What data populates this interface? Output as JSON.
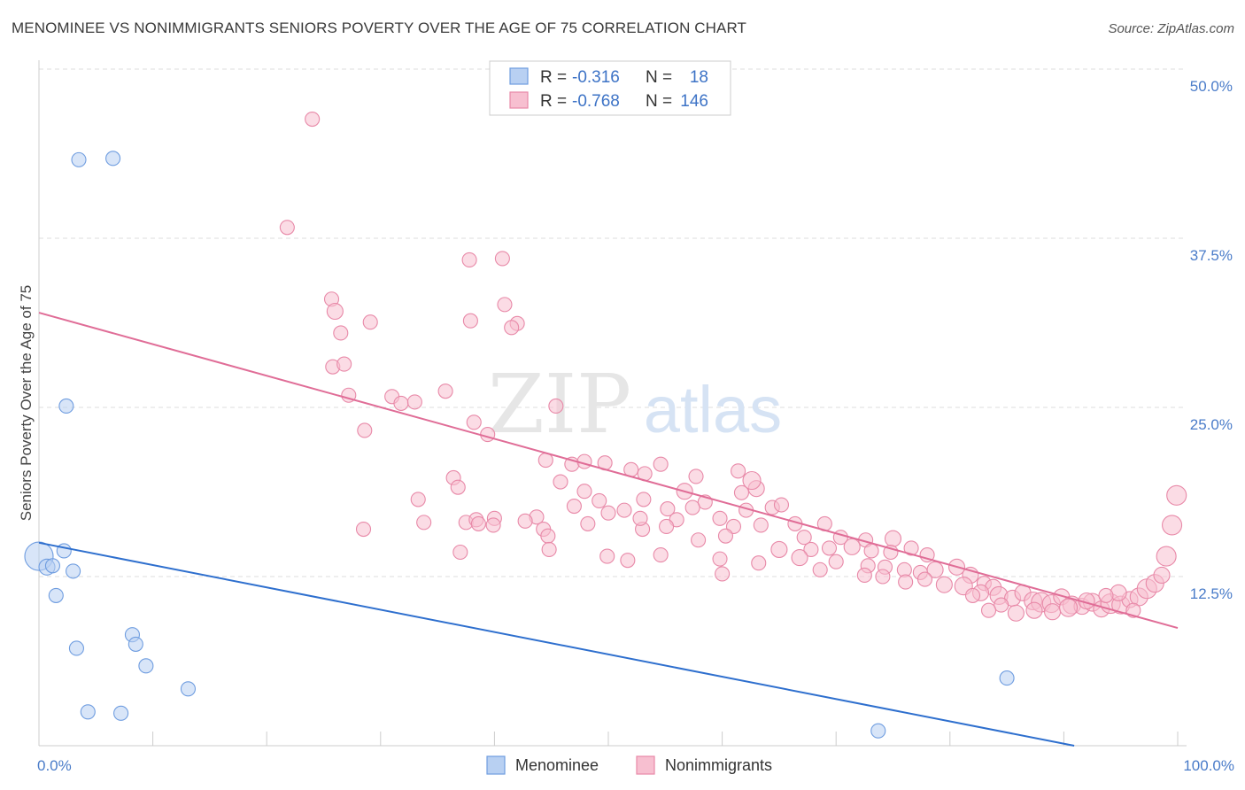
{
  "header": {
    "title": "MENOMINEE VS NONIMMIGRANTS SENIORS POVERTY OVER THE AGE OF 75 CORRELATION CHART",
    "source": "Source: ZipAtlas.com"
  },
  "watermark": {
    "zip": "ZIP",
    "atlas": "atlas"
  },
  "legend_box": {
    "rows": [
      {
        "r_label": "R =",
        "r_value": "-0.316",
        "n_label": "N =",
        "n_value": "18"
      },
      {
        "r_label": "R =",
        "r_value": "-0.768",
        "n_label": "N =",
        "n_value": "146"
      }
    ]
  },
  "colors": {
    "menominee_fill": "#b8d0f2",
    "menominee_stroke": "#6f9de0",
    "menominee_line": "#2e6fce",
    "nonimm_fill": "#f7bfd0",
    "nonimm_stroke": "#e889a8",
    "nonimm_line": "#e06d97",
    "grid": "#dddddd",
    "axis_label": "#4a7cc9"
  },
  "chart_data": {
    "type": "scatter",
    "title": "MENOMINEE VS NONIMMIGRANTS SENIORS POVERTY OVER THE AGE OF 75 CORRELATION CHART",
    "xlabel": "",
    "ylabel": "Seniors Poverty Over the Age of 75",
    "xlim": [
      0,
      100
    ],
    "ylim": [
      0,
      50
    ],
    "x_tick_labels": [
      "0.0%",
      "100.0%"
    ],
    "y_ticks": [
      12.5,
      25.0,
      37.5,
      50.0
    ],
    "y_tick_labels": [
      "12.5%",
      "25.0%",
      "37.5%",
      "50.0%"
    ],
    "grid": true,
    "legend_position": "top-center",
    "series": [
      {
        "name": "Menominee",
        "r": -0.316,
        "n": 18,
        "trend": {
          "x": [
            0,
            100
          ],
          "y": [
            15.0,
            -1.5
          ]
        },
        "points": [
          {
            "x": 0,
            "y": 14.0,
            "s": 16
          },
          {
            "x": 0.7,
            "y": 13.2,
            "s": 9
          },
          {
            "x": 1.2,
            "y": 13.3,
            "s": 8
          },
          {
            "x": 2.2,
            "y": 14.4,
            "s": 8
          },
          {
            "x": 3.5,
            "y": 43.3,
            "s": 8
          },
          {
            "x": 6.5,
            "y": 43.4,
            "s": 8
          },
          {
            "x": 2.4,
            "y": 25.1,
            "s": 8
          },
          {
            "x": 3.0,
            "y": 12.9,
            "s": 8
          },
          {
            "x": 1.5,
            "y": 11.1,
            "s": 8
          },
          {
            "x": 3.3,
            "y": 7.2,
            "s": 8
          },
          {
            "x": 8.2,
            "y": 8.2,
            "s": 8
          },
          {
            "x": 8.5,
            "y": 7.5,
            "s": 8
          },
          {
            "x": 9.4,
            "y": 5.9,
            "s": 8
          },
          {
            "x": 13.1,
            "y": 4.2,
            "s": 8
          },
          {
            "x": 4.3,
            "y": 2.5,
            "s": 8
          },
          {
            "x": 7.2,
            "y": 2.4,
            "s": 8
          },
          {
            "x": 85.0,
            "y": 5.0,
            "s": 8
          },
          {
            "x": 73.7,
            "y": 1.1,
            "s": 8
          }
        ]
      },
      {
        "name": "Nonimmigrants",
        "r": -0.768,
        "n": 146,
        "trend": {
          "x": [
            0,
            100
          ],
          "y": [
            32.0,
            8.7
          ]
        },
        "points": [
          {
            "x": 24.0,
            "y": 46.3,
            "s": 8
          },
          {
            "x": 21.8,
            "y": 38.3,
            "s": 8
          },
          {
            "x": 37.8,
            "y": 35.9,
            "s": 8
          },
          {
            "x": 40.7,
            "y": 36.0,
            "s": 8
          },
          {
            "x": 25.7,
            "y": 33.0,
            "s": 8
          },
          {
            "x": 26.0,
            "y": 32.1,
            "s": 9
          },
          {
            "x": 26.5,
            "y": 30.5,
            "s": 8
          },
          {
            "x": 29.1,
            "y": 31.3,
            "s": 8
          },
          {
            "x": 37.9,
            "y": 31.4,
            "s": 8
          },
          {
            "x": 40.9,
            "y": 32.6,
            "s": 8
          },
          {
            "x": 42.0,
            "y": 31.2,
            "s": 8
          },
          {
            "x": 41.5,
            "y": 30.9,
            "s": 8
          },
          {
            "x": 25.8,
            "y": 28.0,
            "s": 8
          },
          {
            "x": 26.8,
            "y": 28.2,
            "s": 8
          },
          {
            "x": 27.2,
            "y": 25.9,
            "s": 8
          },
          {
            "x": 31.0,
            "y": 25.8,
            "s": 8
          },
          {
            "x": 31.8,
            "y": 25.3,
            "s": 8
          },
          {
            "x": 33.0,
            "y": 25.4,
            "s": 8
          },
          {
            "x": 35.7,
            "y": 26.2,
            "s": 8
          },
          {
            "x": 45.4,
            "y": 25.1,
            "s": 8
          },
          {
            "x": 28.6,
            "y": 23.3,
            "s": 8
          },
          {
            "x": 38.2,
            "y": 23.9,
            "s": 8
          },
          {
            "x": 39.4,
            "y": 23.0,
            "s": 8
          },
          {
            "x": 44.5,
            "y": 21.1,
            "s": 8
          },
          {
            "x": 46.8,
            "y": 20.8,
            "s": 8
          },
          {
            "x": 47.9,
            "y": 21.0,
            "s": 8
          },
          {
            "x": 49.7,
            "y": 20.9,
            "s": 8
          },
          {
            "x": 52.0,
            "y": 20.4,
            "s": 8
          },
          {
            "x": 53.2,
            "y": 20.1,
            "s": 8
          },
          {
            "x": 54.6,
            "y": 20.8,
            "s": 8
          },
          {
            "x": 36.4,
            "y": 19.8,
            "s": 8
          },
          {
            "x": 36.8,
            "y": 19.1,
            "s": 8
          },
          {
            "x": 45.8,
            "y": 19.5,
            "s": 8
          },
          {
            "x": 57.7,
            "y": 19.9,
            "s": 8
          },
          {
            "x": 47.9,
            "y": 18.8,
            "s": 8
          },
          {
            "x": 49.2,
            "y": 18.1,
            "s": 8
          },
          {
            "x": 53.1,
            "y": 18.2,
            "s": 8
          },
          {
            "x": 56.7,
            "y": 18.8,
            "s": 9
          },
          {
            "x": 58.5,
            "y": 18.0,
            "s": 8
          },
          {
            "x": 61.7,
            "y": 18.7,
            "s": 8
          },
          {
            "x": 63.0,
            "y": 19.0,
            "s": 9
          },
          {
            "x": 33.3,
            "y": 18.2,
            "s": 8
          },
          {
            "x": 47.0,
            "y": 17.7,
            "s": 8
          },
          {
            "x": 50.0,
            "y": 17.2,
            "s": 8
          },
          {
            "x": 51.4,
            "y": 17.4,
            "s": 8
          },
          {
            "x": 55.2,
            "y": 17.5,
            "s": 8
          },
          {
            "x": 57.4,
            "y": 17.6,
            "s": 8
          },
          {
            "x": 62.1,
            "y": 17.4,
            "s": 8
          },
          {
            "x": 64.4,
            "y": 17.6,
            "s": 8
          },
          {
            "x": 65.2,
            "y": 17.8,
            "s": 8
          },
          {
            "x": 37.5,
            "y": 16.5,
            "s": 8
          },
          {
            "x": 38.4,
            "y": 16.7,
            "s": 8
          },
          {
            "x": 40.0,
            "y": 16.8,
            "s": 8
          },
          {
            "x": 43.7,
            "y": 16.9,
            "s": 8
          },
          {
            "x": 48.2,
            "y": 16.4,
            "s": 8
          },
          {
            "x": 53.0,
            "y": 16.0,
            "s": 8
          },
          {
            "x": 56.0,
            "y": 16.7,
            "s": 8
          },
          {
            "x": 59.8,
            "y": 16.8,
            "s": 8
          },
          {
            "x": 61.0,
            "y": 16.2,
            "s": 8
          },
          {
            "x": 63.4,
            "y": 16.3,
            "s": 8
          },
          {
            "x": 66.4,
            "y": 16.4,
            "s": 8
          },
          {
            "x": 69.0,
            "y": 16.4,
            "s": 8
          },
          {
            "x": 28.5,
            "y": 16.0,
            "s": 8
          },
          {
            "x": 33.8,
            "y": 16.5,
            "s": 8
          },
          {
            "x": 38.6,
            "y": 16.4,
            "s": 8
          },
          {
            "x": 42.7,
            "y": 16.6,
            "s": 8
          },
          {
            "x": 44.3,
            "y": 16.0,
            "s": 8
          },
          {
            "x": 44.7,
            "y": 15.5,
            "s": 8
          },
          {
            "x": 52.8,
            "y": 16.8,
            "s": 8
          },
          {
            "x": 55.1,
            "y": 16.2,
            "s": 8
          },
          {
            "x": 57.9,
            "y": 15.2,
            "s": 8
          },
          {
            "x": 60.3,
            "y": 15.5,
            "s": 8
          },
          {
            "x": 67.2,
            "y": 15.4,
            "s": 8
          },
          {
            "x": 70.4,
            "y": 15.4,
            "s": 8
          },
          {
            "x": 72.6,
            "y": 15.2,
            "s": 8
          },
          {
            "x": 75.0,
            "y": 15.3,
            "s": 9
          },
          {
            "x": 65.0,
            "y": 14.5,
            "s": 9
          },
          {
            "x": 67.8,
            "y": 14.5,
            "s": 8
          },
          {
            "x": 69.4,
            "y": 14.6,
            "s": 8
          },
          {
            "x": 71.4,
            "y": 14.7,
            "s": 9
          },
          {
            "x": 73.1,
            "y": 14.4,
            "s": 8
          },
          {
            "x": 74.8,
            "y": 14.3,
            "s": 8
          },
          {
            "x": 76.6,
            "y": 14.6,
            "s": 8
          },
          {
            "x": 78.0,
            "y": 14.1,
            "s": 8
          },
          {
            "x": 49.9,
            "y": 14.0,
            "s": 8
          },
          {
            "x": 54.6,
            "y": 14.1,
            "s": 8
          },
          {
            "x": 59.8,
            "y": 13.8,
            "s": 8
          },
          {
            "x": 66.8,
            "y": 13.9,
            "s": 9
          },
          {
            "x": 70.0,
            "y": 13.6,
            "s": 8
          },
          {
            "x": 72.8,
            "y": 13.3,
            "s": 8
          },
          {
            "x": 74.3,
            "y": 13.2,
            "s": 8
          },
          {
            "x": 76.0,
            "y": 13.0,
            "s": 8
          },
          {
            "x": 77.4,
            "y": 12.8,
            "s": 8
          },
          {
            "x": 78.7,
            "y": 13.0,
            "s": 9
          },
          {
            "x": 80.6,
            "y": 13.2,
            "s": 9
          },
          {
            "x": 81.8,
            "y": 12.6,
            "s": 9
          },
          {
            "x": 83.0,
            "y": 12.0,
            "s": 8
          },
          {
            "x": 83.8,
            "y": 11.7,
            "s": 9
          },
          {
            "x": 37.0,
            "y": 14.3,
            "s": 8
          },
          {
            "x": 44.8,
            "y": 14.5,
            "s": 8
          },
          {
            "x": 51.7,
            "y": 13.7,
            "s": 8
          },
          {
            "x": 63.2,
            "y": 13.5,
            "s": 8
          },
          {
            "x": 68.6,
            "y": 13.0,
            "s": 8
          },
          {
            "x": 72.5,
            "y": 12.6,
            "s": 8
          },
          {
            "x": 74.1,
            "y": 12.5,
            "s": 8
          },
          {
            "x": 76.1,
            "y": 12.1,
            "s": 8
          },
          {
            "x": 77.8,
            "y": 12.3,
            "s": 8
          },
          {
            "x": 79.5,
            "y": 11.9,
            "s": 9
          },
          {
            "x": 81.2,
            "y": 11.8,
            "s": 10
          },
          {
            "x": 82.7,
            "y": 11.3,
            "s": 9
          },
          {
            "x": 84.3,
            "y": 11.1,
            "s": 10
          },
          {
            "x": 85.5,
            "y": 10.9,
            "s": 9
          },
          {
            "x": 86.4,
            "y": 11.3,
            "s": 9
          },
          {
            "x": 87.3,
            "y": 10.7,
            "s": 10
          },
          {
            "x": 88.0,
            "y": 10.6,
            "s": 11
          },
          {
            "x": 88.9,
            "y": 10.5,
            "s": 10
          },
          {
            "x": 89.8,
            "y": 11.0,
            "s": 9
          },
          {
            "x": 90.7,
            "y": 10.4,
            "s": 10
          },
          {
            "x": 91.6,
            "y": 10.3,
            "s": 9
          },
          {
            "x": 92.5,
            "y": 10.6,
            "s": 10
          },
          {
            "x": 93.3,
            "y": 10.1,
            "s": 9
          },
          {
            "x": 94.1,
            "y": 10.5,
            "s": 11
          },
          {
            "x": 95.0,
            "y": 10.4,
            "s": 10
          },
          {
            "x": 95.8,
            "y": 10.8,
            "s": 9
          },
          {
            "x": 96.6,
            "y": 11.0,
            "s": 10
          },
          {
            "x": 97.3,
            "y": 11.6,
            "s": 11
          },
          {
            "x": 98.0,
            "y": 12.0,
            "s": 10
          },
          {
            "x": 98.6,
            "y": 12.6,
            "s": 9
          },
          {
            "x": 99.0,
            "y": 14.0,
            "s": 11
          },
          {
            "x": 99.5,
            "y": 16.3,
            "s": 11
          },
          {
            "x": 99.9,
            "y": 18.5,
            "s": 11
          },
          {
            "x": 94.8,
            "y": 11.3,
            "s": 9
          },
          {
            "x": 87.4,
            "y": 10.0,
            "s": 9
          },
          {
            "x": 89.0,
            "y": 9.9,
            "s": 9
          },
          {
            "x": 90.4,
            "y": 10.2,
            "s": 10
          },
          {
            "x": 92.0,
            "y": 10.7,
            "s": 9
          },
          {
            "x": 93.7,
            "y": 11.1,
            "s": 8
          },
          {
            "x": 96.1,
            "y": 10.0,
            "s": 8
          },
          {
            "x": 85.8,
            "y": 9.8,
            "s": 9
          },
          {
            "x": 84.5,
            "y": 10.4,
            "s": 8
          },
          {
            "x": 83.4,
            "y": 10.0,
            "s": 8
          },
          {
            "x": 82.0,
            "y": 11.1,
            "s": 8
          },
          {
            "x": 62.6,
            "y": 19.6,
            "s": 10
          },
          {
            "x": 61.4,
            "y": 20.3,
            "s": 8
          },
          {
            "x": 60.0,
            "y": 12.7,
            "s": 8
          },
          {
            "x": 39.9,
            "y": 16.3,
            "s": 8
          }
        ]
      }
    ]
  },
  "bottom_legend": {
    "items": [
      {
        "label": "Menominee"
      },
      {
        "label": "Nonimmigrants"
      }
    ]
  }
}
